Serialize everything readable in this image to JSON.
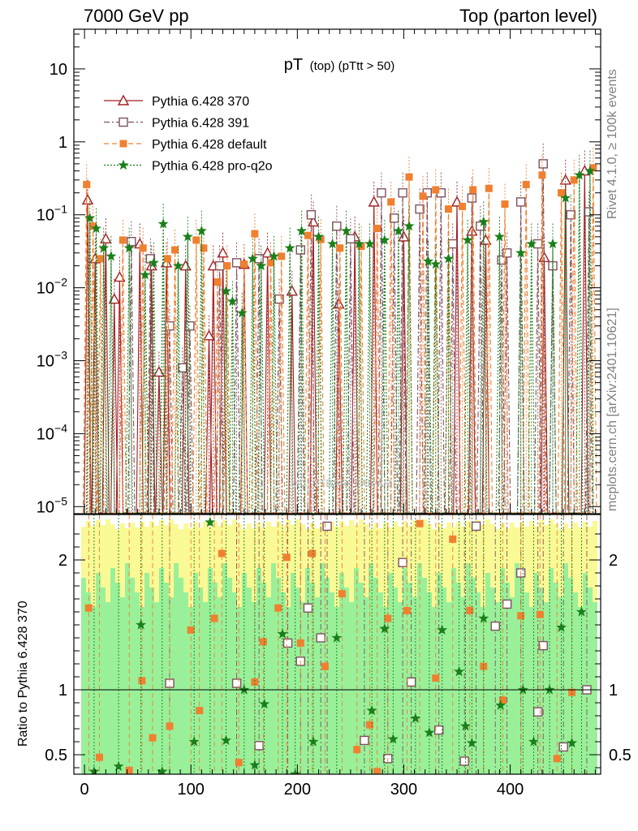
{
  "header": {
    "left": "7000 GeV pp",
    "right": "Top (parton level)"
  },
  "side_labels": {
    "rivet": "Rivet 4.1.0, ≥ 100k events",
    "mcplots": "mcplots.cern.ch [arXiv:2401.10621]"
  },
  "watermark": "MC_TTBAR_TRIVAR",
  "colors": {
    "p370": "#a01e23",
    "p391": "#7f4f5f",
    "pdefault": "#f08030",
    "pq2o": "#1a7f1a",
    "band_green": "#99f099",
    "band_yellow": "#f9f996"
  },
  "chart_data": {
    "type": "line",
    "title_main": "pT",
    "title_sub": "(top) (pTtt > 50)",
    "xlabel": "",
    "ylabel_ratio": "Ratio to Pythia 6.428 370",
    "xlim": [
      -10,
      485
    ],
    "ylim": [
      8e-06,
      35
    ],
    "ratio_ylim": [
      0.35,
      2.35
    ],
    "yscale": "log",
    "x_ticks": [
      "0",
      "100",
      "200",
      "300",
      "400"
    ],
    "x_tick_values": [
      0,
      100,
      200,
      300,
      400
    ],
    "y_ticks": [
      "10",
      "1",
      "10^-1",
      "10^-2",
      "10^-3",
      "10^-4",
      "10^-5"
    ],
    "y_tick_values": [
      10,
      1,
      0.1,
      0.01,
      0.001,
      0.0001,
      1e-05
    ],
    "ratio_ticks": [
      "2",
      "1",
      "0.5"
    ],
    "ratio_tick_values": [
      2,
      1,
      0.5
    ],
    "legend_position": "top-left",
    "series": [
      {
        "name": "Pythia 6.428 370",
        "key": "p370",
        "marker": "triangle",
        "style": "solid",
        "x": [
          3,
          10,
          20,
          28,
          33,
          52,
          63,
          70,
          77,
          95,
          117,
          121,
          130,
          150,
          172,
          195,
          215,
          239,
          254,
          272,
          300,
          350,
          364,
          377,
          432,
          452,
          470
        ],
        "y": [
          0.16,
          0.025,
          0.047,
          0.007,
          0.014,
          0.04,
          0.02,
          0.0007,
          0.022,
          0.02,
          0.0022,
          0.02,
          0.03,
          0.021,
          0.03,
          0.009,
          0.08,
          0.006,
          0.05,
          0.15,
          0.05,
          0.15,
          0.06,
          0.045,
          0.026,
          0.3,
          0.4
        ]
      },
      {
        "name": "Pythia 6.428 391",
        "key": "p391",
        "marker": "square",
        "style": "dashdot",
        "x": [
          44,
          62,
          80,
          92,
          99,
          127,
          143,
          164,
          183,
          203,
          213,
          237,
          250,
          279,
          291,
          299,
          315,
          322,
          335,
          346,
          364,
          372,
          392,
          397,
          410,
          426,
          431,
          440,
          457,
          474
        ],
        "y": [
          0.043,
          0.025,
          0.003,
          0.0008,
          0.003,
          0.02,
          0.022,
          0.025,
          0.007,
          0.033,
          0.1,
          0.07,
          0.047,
          0.2,
          0.09,
          0.2,
          0.12,
          0.2,
          0.2,
          0.04,
          0.17,
          0.07,
          0.024,
          0.03,
          0.15,
          0.04,
          0.5,
          0.02,
          0.1,
          0.11
        ]
      },
      {
        "name": "Pythia 6.428 default",
        "key": "pdefault",
        "marker": "fullsquare",
        "style": "dashed",
        "x": [
          2,
          8,
          15,
          36,
          55,
          78,
          85,
          105,
          112,
          125,
          134,
          150,
          160,
          175,
          185,
          210,
          222,
          240,
          260,
          275,
          288,
          305,
          318,
          330,
          342,
          355,
          365,
          380,
          395,
          415,
          430,
          448,
          460,
          478
        ],
        "y": [
          0.26,
          0.07,
          0.025,
          0.045,
          0.035,
          0.025,
          0.033,
          0.045,
          0.035,
          0.012,
          0.02,
          0.021,
          0.055,
          0.022,
          0.027,
          0.052,
          0.046,
          0.035,
          0.037,
          0.065,
          0.15,
          0.33,
          0.18,
          0.22,
          0.12,
          0.13,
          0.22,
          0.23,
          0.14,
          0.26,
          0.35,
          0.2,
          0.3,
          0.44
        ]
      },
      {
        "name": "Pythia 6.428 pro-q2o",
        "key": "pq2o",
        "marker": "star",
        "style": "dotted",
        "x": [
          5,
          11,
          18,
          25,
          42,
          57,
          65,
          74,
          88,
          97,
          110,
          133,
          139,
          148,
          158,
          166,
          178,
          193,
          204,
          220,
          233,
          246,
          258,
          268,
          282,
          295,
          305,
          323,
          330,
          342,
          360,
          375,
          390,
          410,
          420,
          440,
          452,
          465,
          475
        ],
        "y": [
          0.09,
          0.065,
          0.035,
          0.027,
          0.035,
          0.015,
          0.022,
          0.075,
          0.02,
          0.05,
          0.06,
          0.009,
          0.0065,
          0.0045,
          0.025,
          0.02,
          0.027,
          0.035,
          0.06,
          0.05,
          0.04,
          0.06,
          0.04,
          0.04,
          0.045,
          0.06,
          0.07,
          0.023,
          0.021,
          0.025,
          0.045,
          0.08,
          0.05,
          0.03,
          0.04,
          0.04,
          0.17,
          0.35,
          0.4
        ]
      }
    ],
    "ratio_series": [
      {
        "key": "p391",
        "marker": "square",
        "x": [
          80,
          143,
          164,
          191,
          203,
          210,
          222,
          228,
          263,
          285,
          299,
          307,
          333,
          357,
          368,
          386,
          397,
          410,
          426,
          431,
          450,
          472
        ],
        "y": [
          1.05,
          1.05,
          0.57,
          1.36,
          1.22,
          1.63,
          1.4,
          2.26,
          0.61,
          0.47,
          1.98,
          1.06,
          0.69,
          0.45,
          2.26,
          1.49,
          1.66,
          1.9,
          0.83,
          1.34,
          0.56,
          1.0
        ]
      },
      {
        "key": "pdefault",
        "marker": "fullsquare",
        "x": [
          4,
          14,
          42,
          54,
          64,
          80,
          100,
          108,
          122,
          129,
          145,
          160,
          168,
          182,
          190,
          203,
          214,
          226,
          242,
          256,
          268,
          275,
          285,
          303,
          315,
          330,
          346,
          362,
          375,
          393,
          410,
          428,
          444,
          458
        ],
        "y": [
          1.63,
          0.48,
          0.38,
          1.07,
          0.63,
          0.72,
          1.46,
          0.84,
          1.55,
          2.05,
          0.44,
          1.06,
          1.37,
          1.63,
          2.02,
          1.36,
          2.05,
          1.18,
          1.74,
          0.54,
          0.73,
          0.37,
          1.55,
          1.61,
          2.28,
          1.09,
          2.16,
          1.61,
          1.18,
          0.92,
          1.57,
          1.58,
          0.47,
          0.98
        ]
      },
      {
        "key": "pq2o",
        "marker": "star",
        "x": [
          9,
          32,
          53,
          73,
          103,
          118,
          133,
          150,
          160,
          169,
          186,
          198,
          215,
          237,
          270,
          282,
          290,
          311,
          324,
          336,
          352,
          358,
          364,
          375,
          391,
          412,
          422,
          437,
          448,
          458,
          467
        ],
        "y": [
          0.37,
          0.41,
          1.5,
          0.37,
          0.6,
          2.29,
          0.61,
          1.0,
          0.42,
          0.89,
          1.43,
          0.35,
          0.6,
          1.4,
          0.84,
          1.47,
          0.62,
          0.78,
          0.67,
          1.46,
          1.14,
          0.72,
          0.59,
          1.55,
          0.88,
          1.0,
          0.6,
          1.0,
          1.48,
          0.59,
          1.6
        ]
      }
    ]
  }
}
